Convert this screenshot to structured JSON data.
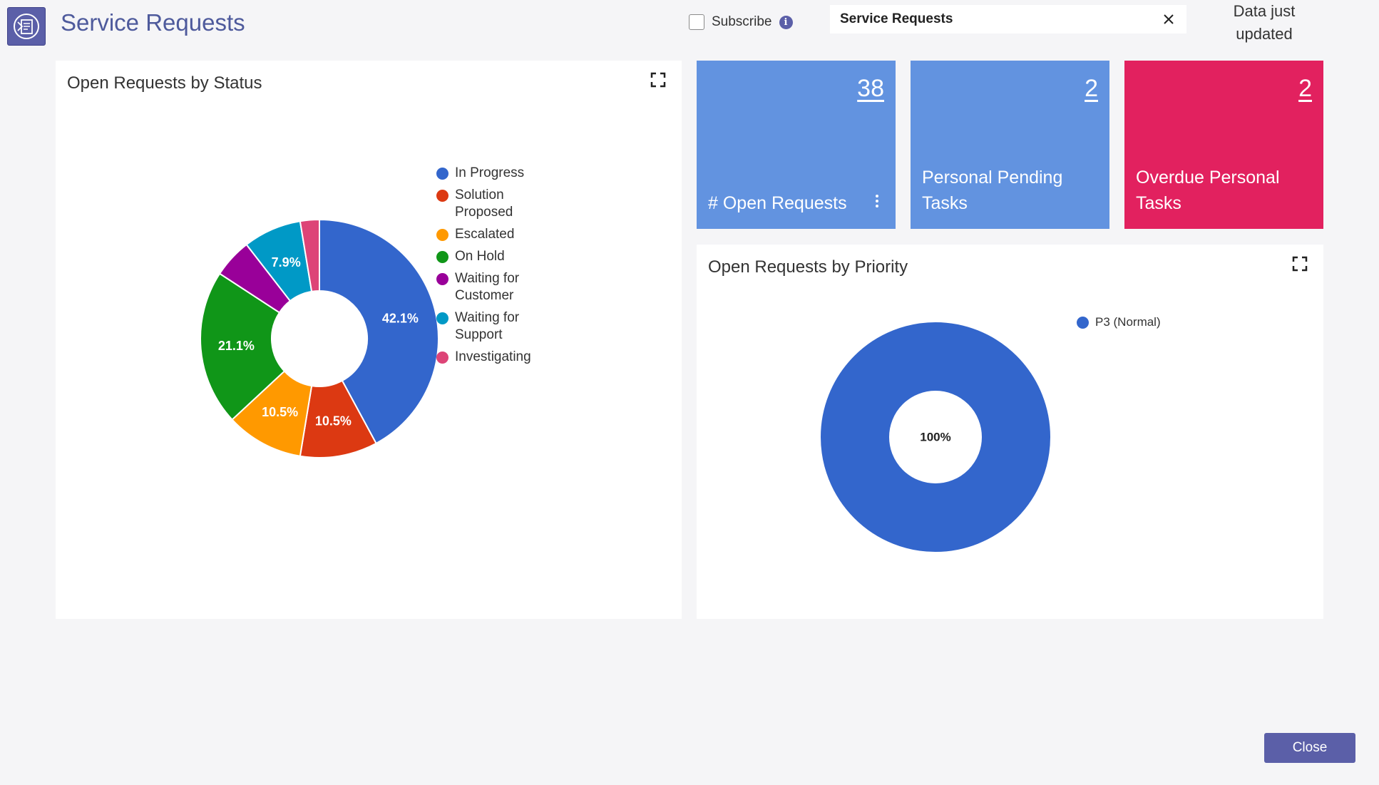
{
  "header": {
    "title": "Service Requests",
    "subscribe_label": "Subscribe",
    "info_glyph": "i",
    "search_value": "Service Requests",
    "data_status": "Data just updated"
  },
  "tiles": [
    {
      "count": "38",
      "label": "# Open Requests",
      "color": "#6293e0"
    },
    {
      "count": "2",
      "label": "Personal Pending Tasks",
      "color": "#6293e0"
    },
    {
      "count": "2",
      "label": "Overdue Personal Tasks",
      "color": "#e2215f"
    }
  ],
  "status_card": {
    "title": "Open Requests by Status"
  },
  "priority_card": {
    "title": "Open Requests by Priority"
  },
  "chart_data": [
    {
      "type": "pie",
      "title": "Open Requests by Status",
      "donut": true,
      "legend": "right",
      "categories": [
        "In Progress",
        "Solution Proposed",
        "Escalated",
        "On Hold",
        "Waiting for Customer",
        "Waiting for Support",
        "Investigating"
      ],
      "values": [
        42.1,
        10.5,
        10.5,
        21.1,
        5.3,
        7.9,
        2.6
      ],
      "labels": [
        "42.1%",
        "10.5%",
        "10.5%",
        "21.1%",
        "",
        "7.9%",
        ""
      ],
      "colors": [
        "#3366cc",
        "#dc3912",
        "#ff9900",
        "#109618",
        "#990099",
        "#0099c6",
        "#dd4477"
      ]
    },
    {
      "type": "pie",
      "title": "Open Requests by Priority",
      "donut": true,
      "legend": "right",
      "categories": [
        "P3 (Normal)"
      ],
      "values": [
        100
      ],
      "labels": [
        "100%"
      ],
      "colors": [
        "#3366cc"
      ]
    }
  ],
  "footer": {
    "close_label": "Close"
  }
}
